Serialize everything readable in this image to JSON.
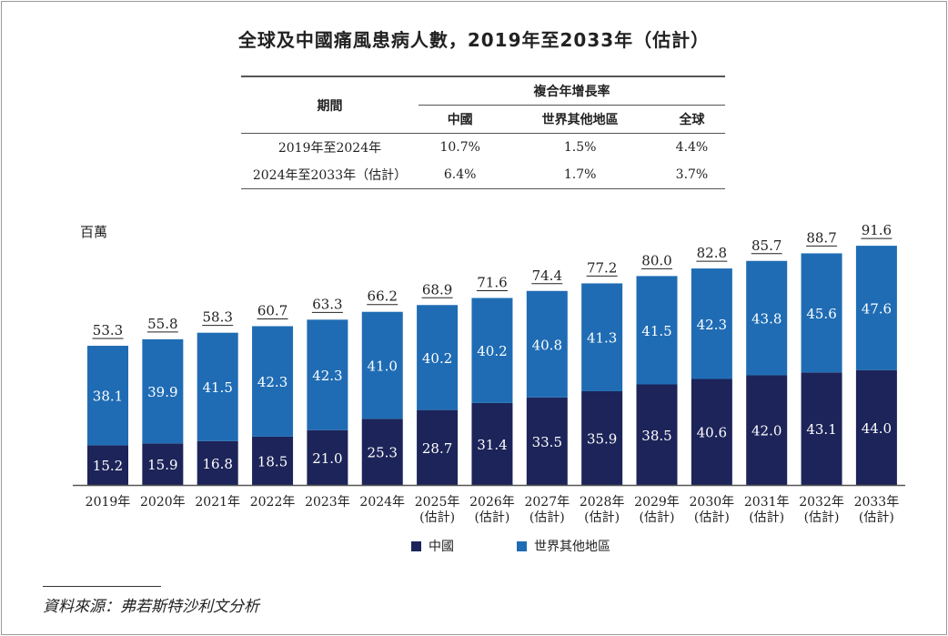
{
  "title": "全球及中國痛風患病人數，2019年至2033年（估計）",
  "cagr_table": {
    "period_header": "期間",
    "group_header": "複合年增長率",
    "columns": [
      "中國",
      "世界其他地區",
      "全球"
    ],
    "rows": [
      {
        "period": "2019年至2024年",
        "values": [
          "10.7%",
          "1.5%",
          "4.4%"
        ]
      },
      {
        "period": "2024年至2033年（估計）",
        "values": [
          "6.4%",
          "1.7%",
          "3.7%"
        ]
      }
    ]
  },
  "source": "資料來源：弗若斯特沙利文分析",
  "chart_data": {
    "type": "bar",
    "stacked": true,
    "ylabel": "百萬",
    "ylim": [
      0,
      95
    ],
    "grid": false,
    "legend_position": "bottom",
    "categories": [
      "2019年",
      "2020年",
      "2021年",
      "2022年",
      "2023年",
      "2024年",
      "2025年\n(估計)",
      "2026年\n(估計)",
      "2027年\n(估計)",
      "2028年\n(估計)",
      "2029年\n(估計)",
      "2030年\n(估計)",
      "2031年\n(估計)",
      "2032年\n(估計)",
      "2033年\n(估計)"
    ],
    "series": [
      {
        "name": "中國",
        "color": "#1c2459",
        "values": [
          15.2,
          15.9,
          16.8,
          18.5,
          21.0,
          25.3,
          28.7,
          31.4,
          33.5,
          35.9,
          38.5,
          40.6,
          42.0,
          43.1,
          44.0
        ]
      },
      {
        "name": "世界其他地區",
        "color": "#1f6cb4",
        "values": [
          38.1,
          39.9,
          41.5,
          42.3,
          42.3,
          41.0,
          40.2,
          40.2,
          40.8,
          41.3,
          41.5,
          42.3,
          43.8,
          45.6,
          47.6
        ]
      }
    ],
    "totals": [
      53.3,
      55.8,
      58.3,
      60.7,
      63.3,
      66.2,
      68.9,
      71.6,
      74.4,
      77.2,
      80.0,
      82.8,
      85.7,
      88.7,
      91.6
    ]
  }
}
